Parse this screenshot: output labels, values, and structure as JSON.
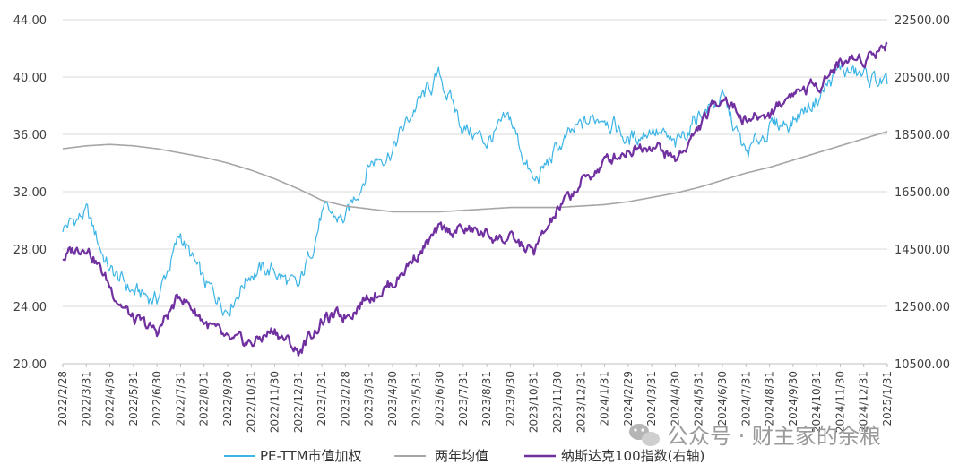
{
  "chart_data": {
    "type": "line",
    "title": "",
    "xlabel": "",
    "ylabel": "",
    "y_left": {
      "ylim": [
        20,
        44
      ],
      "ticks": [
        "20.00",
        "24.00",
        "28.00",
        "32.00",
        "36.00",
        "40.00",
        "44.00"
      ]
    },
    "y_right": {
      "ylim": [
        10500,
        22500
      ],
      "ticks": [
        "10500.00",
        "12500.00",
        "14500.00",
        "16500.00",
        "18500.00",
        "20500.00",
        "22500.00"
      ]
    },
    "categories": [
      "2022/2/28",
      "2022/3/31",
      "2022/4/30",
      "2022/5/31",
      "2022/6/30",
      "2022/7/31",
      "2022/8/31",
      "2022/9/30",
      "2022/10/31",
      "2022/11/30",
      "2022/12/31",
      "2023/1/31",
      "2023/2/28",
      "2023/3/31",
      "2023/4/30",
      "2023/5/31",
      "2023/6/30",
      "2023/7/31",
      "2023/8/31",
      "2023/9/30",
      "2023/10/31",
      "2023/11/30",
      "2023/12/31",
      "2024/1/31",
      "2024/2/29",
      "2024/3/31",
      "2024/4/30",
      "2024/5/31",
      "2024/6/30",
      "2024/7/31",
      "2024/8/31",
      "2024/9/30",
      "2024/10/31",
      "2024/11/30",
      "2024/12/31",
      "2025/1/31"
    ],
    "grid": "horizontal",
    "legend_position": "bottom",
    "series": [
      {
        "name": "PE-TTM市值加权",
        "axis": "left",
        "color": "#3bb4e6",
        "values": [
          29.5,
          30.5,
          26.5,
          25.0,
          24.5,
          29.0,
          25.5,
          24.0,
          26.5,
          26.5,
          25.0,
          30.5,
          30.0,
          34.0,
          35.0,
          38.0,
          40.0,
          36.5,
          35.5,
          37.0,
          32.5,
          35.0,
          36.5,
          37.5,
          35.5,
          36.5,
          35.0,
          37.5,
          38.5,
          34.5,
          36.5,
          37.0,
          38.5,
          40.5,
          40.0,
          39.5
        ]
      },
      {
        "name": "两年均值",
        "axis": "left",
        "color": "#a6a6a6",
        "values": [
          35.0,
          35.2,
          35.3,
          35.2,
          35.0,
          34.7,
          34.4,
          34.0,
          33.5,
          32.9,
          32.2,
          31.4,
          31.0,
          30.8,
          30.6,
          30.6,
          30.6,
          30.7,
          30.8,
          30.9,
          30.9,
          30.9,
          31.0,
          31.1,
          31.3,
          31.6,
          31.9,
          32.3,
          32.8,
          33.3,
          33.7,
          34.2,
          34.7,
          35.2,
          35.7,
          36.2
        ]
      },
      {
        "name": "纳斯达克100指数(右轴)",
        "axis": "right",
        "color": "#7030a0",
        "values": [
          14200,
          14700,
          13200,
          12000,
          11600,
          12900,
          12000,
          11200,
          11200,
          11700,
          10900,
          12000,
          12200,
          12900,
          13300,
          14300,
          15100,
          15200,
          15000,
          14800,
          14400,
          15800,
          16800,
          17500,
          18000,
          18200,
          17600,
          18700,
          19900,
          19000,
          19200,
          20000,
          20200,
          21000,
          21200,
          21700
        ]
      }
    ]
  },
  "watermark": {
    "text": "公众号 · 财主家的余粮",
    "icon": "wechat-icon"
  }
}
